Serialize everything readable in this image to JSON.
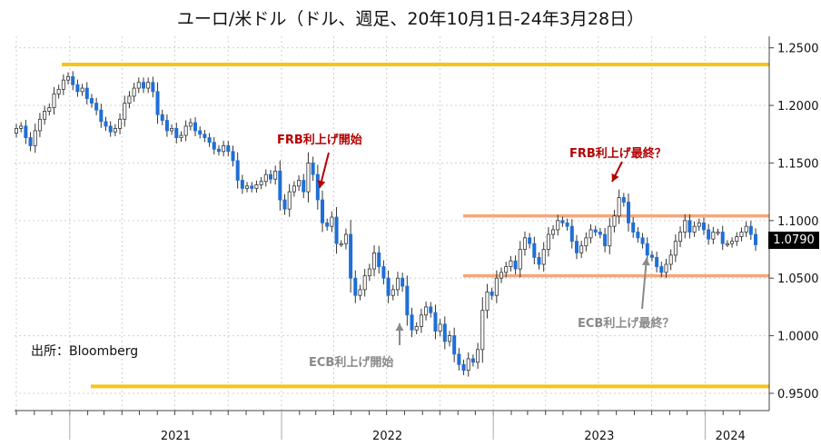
{
  "title": "ユーロ/米ドル（ドル、週足、20年10月1日-24年3月28日）",
  "source": "出所：Bloomberg",
  "colors": {
    "up_candle": "#ffffff",
    "up_outline": "#333333",
    "down_candle": "#1f6fd6",
    "range_band_lines": "#f4a778",
    "outer_band_lines": "#f5c518",
    "grid": "#d0d0d0",
    "annotation_red": "#b40000",
    "annotation_gray": "#8a8a8a"
  },
  "chart_data": {
    "type": "candlestick",
    "title": "ユーロ/米ドル（ドル、週足、20年10月1日-24年3月28日）",
    "xlabel": "",
    "ylabel": "",
    "ylim": [
      0.935,
      1.26
    ],
    "x_range": [
      "2020-10-01",
      "2024-03-28"
    ],
    "y_ticks": [
      "0.9500",
      "1.0000",
      "1.0500",
      "1.1000",
      "1.1500",
      "1.2000",
      "1.2500"
    ],
    "x_tick_labels": [
      "2021",
      "2022",
      "2023",
      "2024"
    ],
    "grid": true,
    "last_price": "1.0790",
    "reference_lines": [
      {
        "value": 1.2355,
        "style": "outer"
      },
      {
        "value": 0.956,
        "style": "outer"
      },
      {
        "value": 1.104,
        "style": "range"
      },
      {
        "value": 1.052,
        "style": "range"
      }
    ],
    "annotations": [
      {
        "text": "FRB利上げ開始",
        "date": "2022-03-16",
        "value": 1.12
      },
      {
        "text": "ECB利上げ開始",
        "date": "2022-07-21",
        "value": 1.0
      },
      {
        "text": "FRB利上げ最終？",
        "date": "2023-07-26",
        "value": 1.127
      },
      {
        "text": "ECB利上げ最終？",
        "date": "2023-09-14",
        "value": 1.063
      }
    ],
    "weekly_close": [
      1.18,
      1.182,
      1.172,
      1.165,
      1.178,
      1.188,
      1.195,
      1.198,
      1.21,
      1.214,
      1.222,
      1.225,
      1.218,
      1.212,
      1.215,
      1.206,
      1.202,
      1.196,
      1.186,
      1.182,
      1.177,
      1.18,
      1.188,
      1.202,
      1.208,
      1.215,
      1.22,
      1.215,
      1.22,
      1.212,
      1.192,
      1.187,
      1.178,
      1.18,
      1.172,
      1.174,
      1.182,
      1.185,
      1.178,
      1.175,
      1.172,
      1.168,
      1.162,
      1.16,
      1.165,
      1.16,
      1.152,
      1.135,
      1.128,
      1.13,
      1.128,
      1.131,
      1.134,
      1.14,
      1.136,
      1.143,
      1.118,
      1.11,
      1.125,
      1.13,
      1.135,
      1.125,
      1.15,
      1.14,
      1.118,
      1.098,
      1.095,
      1.103,
      1.08,
      1.08,
      1.088,
      1.05,
      1.035,
      1.04,
      1.052,
      1.058,
      1.072,
      1.06,
      1.05,
      1.035,
      1.04,
      1.05,
      1.043,
      1.018,
      1.005,
      1.008,
      1.018,
      1.025,
      1.02,
      1.004,
      1.01,
      0.995,
      1.0,
      0.984,
      0.975,
      0.97,
      0.98,
      0.977,
      0.988,
      1.022,
      1.038,
      1.035,
      1.05,
      1.055,
      1.06,
      1.065,
      1.058,
      1.075,
      1.085,
      1.08,
      1.068,
      1.062,
      1.075,
      1.088,
      1.092,
      1.1,
      1.098,
      1.095,
      1.082,
      1.072,
      1.078,
      1.085,
      1.092,
      1.09,
      1.088,
      1.078,
      1.095,
      1.104,
      1.12,
      1.116,
      1.098,
      1.09,
      1.085,
      1.08,
      1.07,
      1.068,
      1.06,
      1.055,
      1.062,
      1.07,
      1.082,
      1.09,
      1.1,
      1.09,
      1.095,
      1.098,
      1.092,
      1.084,
      1.09,
      1.09,
      1.08,
      1.08,
      1.082,
      1.086,
      1.09,
      1.095,
      1.088,
      1.079
    ]
  }
}
